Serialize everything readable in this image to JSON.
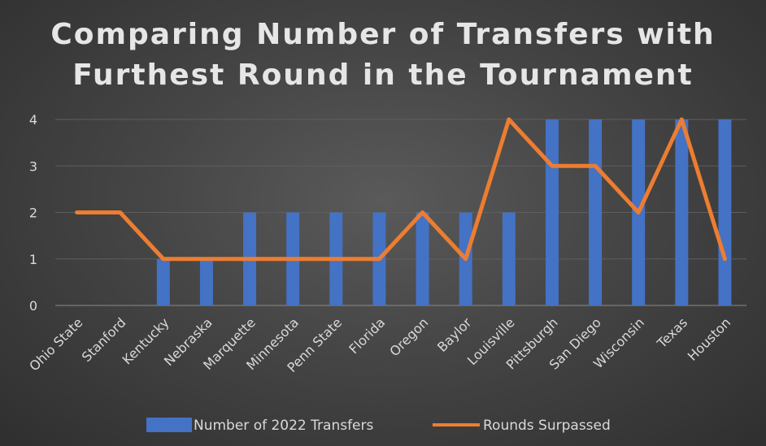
{
  "chart_data": {
    "type": "bar",
    "title": "Comparing Number of Transfers with Furthest Round in the Tournament",
    "title_lines": [
      "Comparing Number of Transfers with",
      "Furthest Round in the Tournament"
    ],
    "categories": [
      "Ohio State",
      "Stanford",
      "Kentucky",
      "Nebraska",
      "Marquette",
      "Minnesota",
      "Penn State",
      "Florida",
      "Oregon",
      "Baylor",
      "Louisville",
      "Pittsburgh",
      "San Diego",
      "Wisconsin",
      "Texas",
      "Houston"
    ],
    "series": [
      {
        "name": "Number of 2022 Transfers",
        "type": "bar",
        "color": "#4472c4",
        "values": [
          0,
          0,
          1,
          1,
          2,
          2,
          2,
          2,
          2,
          2,
          2,
          4,
          4,
          4,
          4,
          4
        ]
      },
      {
        "name": "Rounds Surpassed",
        "type": "line",
        "color": "#ed7d31",
        "values": [
          2,
          2,
          1,
          1,
          1,
          1,
          1,
          1,
          2,
          1,
          4,
          3,
          3,
          2,
          4,
          1
        ]
      }
    ],
    "ylim": [
      0,
      4
    ],
    "yticks": [
      "0",
      "1",
      "2",
      "3",
      "4"
    ],
    "grid": true,
    "legend_position": "bottom"
  }
}
